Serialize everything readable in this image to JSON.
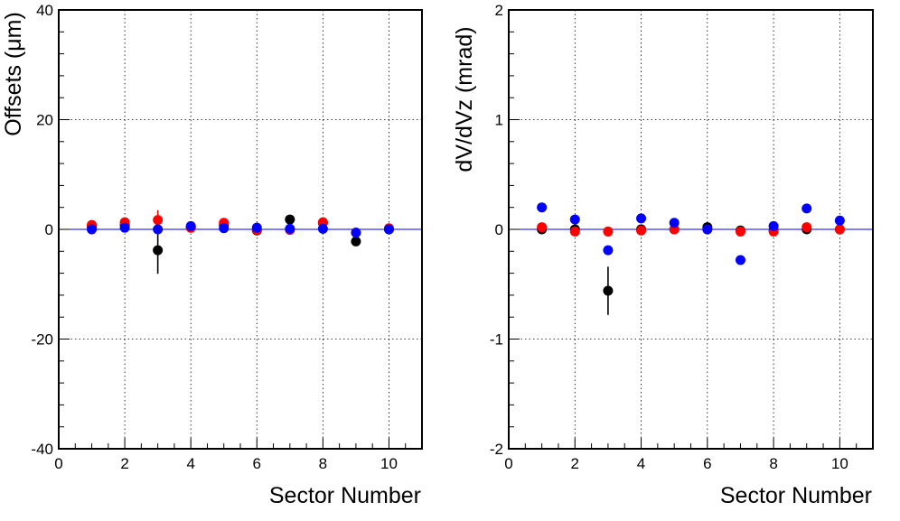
{
  "chart_data": [
    {
      "type": "scatter",
      "xlabel": "Sector Number",
      "ylabel": "Offsets (μm)",
      "xlim": [
        0,
        11
      ],
      "ylim": [
        -40,
        40
      ],
      "xticks": [
        0,
        2,
        4,
        6,
        8,
        10
      ],
      "yticks": [
        -40,
        -20,
        0,
        20,
        40
      ],
      "grid": true,
      "reference_line_y": 0,
      "series": [
        {
          "color": "#000000",
          "x": [
            1,
            2,
            3,
            4,
            5,
            6,
            7,
            8,
            9,
            10
          ],
          "y": [
            0.5,
            0.8,
            -3.8,
            0.3,
            0.8,
            -0.2,
            1.8,
            1.2,
            -2.2,
            0.0
          ],
          "err": [
            0.6,
            0.6,
            4.3,
            0.6,
            0.6,
            0.6,
            0.6,
            0.6,
            0.6,
            0.6
          ]
        },
        {
          "color": "#ff0000",
          "x": [
            1,
            2,
            3,
            4,
            5,
            6,
            7,
            8,
            9,
            10
          ],
          "y": [
            0.8,
            1.3,
            1.7,
            0.3,
            1.2,
            -0.1,
            -0.1,
            1.3,
            -0.6,
            0.2
          ],
          "err": [
            0.5,
            0.5,
            1.8,
            0.5,
            0.5,
            0.5,
            0.5,
            0.5,
            0.5,
            0.5
          ]
        },
        {
          "color": "#0000ff",
          "x": [
            1,
            2,
            3,
            4,
            5,
            6,
            7,
            8,
            9,
            10
          ],
          "y": [
            0.0,
            0.3,
            0.0,
            0.6,
            0.2,
            0.3,
            0.1,
            0.1,
            -0.6,
            0.0
          ],
          "err": [
            0.4,
            0.4,
            0.4,
            0.4,
            0.4,
            0.4,
            0.4,
            0.4,
            0.4,
            0.4
          ]
        }
      ]
    },
    {
      "type": "scatter",
      "xlabel": "Sector Number",
      "ylabel": "dV/dVz (mrad)",
      "xlim": [
        0,
        11
      ],
      "ylim": [
        -2,
        2
      ],
      "xticks": [
        0,
        2,
        4,
        6,
        8,
        10
      ],
      "yticks": [
        -2,
        -1,
        0,
        1,
        2
      ],
      "grid": true,
      "reference_line_y": 0,
      "series": [
        {
          "color": "#000000",
          "x": [
            1,
            2,
            3,
            4,
            5,
            6,
            7,
            8,
            9,
            10
          ],
          "y": [
            0.0,
            0.0,
            -0.56,
            0.0,
            0.0,
            0.02,
            -0.01,
            -0.01,
            0.0,
            0.0
          ],
          "err": [
            0.02,
            0.02,
            0.22,
            0.02,
            0.02,
            0.02,
            0.02,
            0.02,
            0.02,
            0.02
          ]
        },
        {
          "color": "#ff0000",
          "x": [
            1,
            2,
            3,
            4,
            5,
            6,
            7,
            8,
            9,
            10
          ],
          "y": [
            0.02,
            -0.02,
            -0.02,
            -0.01,
            0.0,
            0.0,
            -0.02,
            -0.02,
            0.02,
            0.0
          ],
          "err": [
            0.02,
            0.02,
            0.04,
            0.02,
            0.02,
            0.02,
            0.02,
            0.02,
            0.02,
            0.02
          ]
        },
        {
          "color": "#0000ff",
          "x": [
            1,
            2,
            3,
            4,
            5,
            6,
            7,
            8,
            9,
            10
          ],
          "y": [
            0.2,
            0.09,
            -0.19,
            0.1,
            0.06,
            0.0,
            -0.28,
            0.03,
            0.19,
            0.08
          ],
          "err": [
            0.02,
            0.02,
            0.02,
            0.02,
            0.02,
            0.02,
            0.02,
            0.02,
            0.02,
            0.02
          ]
        }
      ]
    }
  ]
}
